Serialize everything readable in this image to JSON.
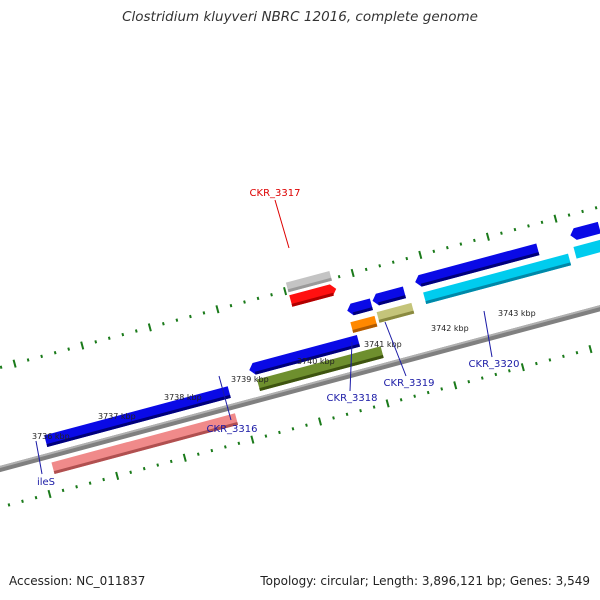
{
  "title": "Clostridium kluyveri NBRC 12016, complete genome",
  "footer": {
    "accession": "Accession: NC_011837",
    "summary": "Topology: circular; Length: 3,896,121 bp; Genes: 3,549"
  },
  "ruler_labels": [
    "3736 kbp",
    "3737 kbp",
    "3738 kbp",
    "3739 kbp",
    "3740 kbp",
    "3741 kbp",
    "3742 kbp",
    "3743 kbp"
  ],
  "gene_labels": [
    {
      "name": "CKR_3317",
      "color": "#dd0000"
    },
    {
      "name": "CKR_3316",
      "color": "#1a1aa6"
    },
    {
      "name": "CKR_3318",
      "color": "#1a1aa6"
    },
    {
      "name": "CKR_3319",
      "color": "#1a1aa6"
    },
    {
      "name": "CKR_3320",
      "color": "#1a1aa6"
    },
    {
      "name": "ileS",
      "color": "#1a1aa6"
    }
  ],
  "colors": {
    "backbone": "#808080",
    "tick": "#1a7a1a",
    "cds": "#0a0ae6",
    "rna": "#f08a8a",
    "orange": "#ff8800",
    "olive": "#c4c47a",
    "cyan": "#00ccee",
    "green": "#6e8f2e",
    "red": "#ff1010",
    "gray": "#c4c4c4"
  }
}
